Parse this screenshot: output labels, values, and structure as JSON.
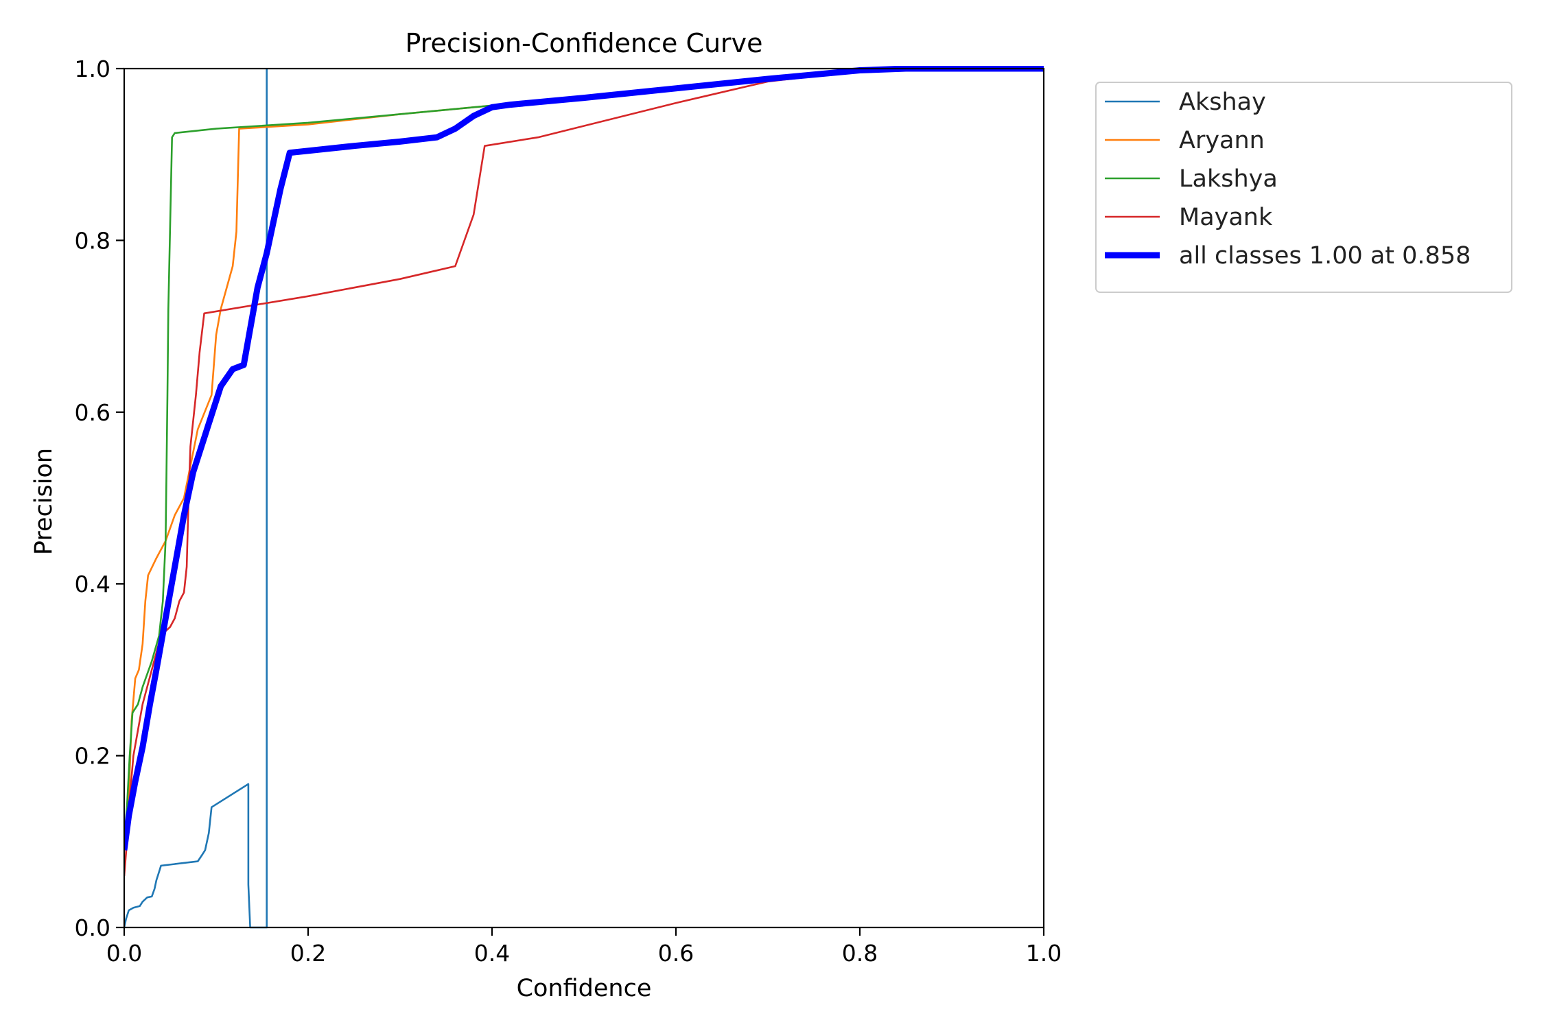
{
  "chart_data": {
    "type": "line",
    "title": "Precision-Confidence Curve",
    "xlabel": "Confidence",
    "ylabel": "Precision",
    "xlim": [
      0,
      1
    ],
    "ylim": [
      0,
      1
    ],
    "xticks": [
      "0.0",
      "0.2",
      "0.4",
      "0.6",
      "0.8",
      "1.0"
    ],
    "yticks": [
      "0.0",
      "0.2",
      "0.4",
      "0.6",
      "0.8",
      "1.0"
    ],
    "grid": false,
    "legend_position": "outside-top-right",
    "series": [
      {
        "name": "Akshay",
        "color": "#1f77b4",
        "thick": false,
        "points": [
          [
            0.0,
            0.0
          ],
          [
            0.002,
            0.01
          ],
          [
            0.005,
            0.02
          ],
          [
            0.01,
            0.023
          ],
          [
            0.017,
            0.025
          ],
          [
            0.02,
            0.03
          ],
          [
            0.025,
            0.035
          ],
          [
            0.03,
            0.036
          ],
          [
            0.033,
            0.045
          ],
          [
            0.035,
            0.055
          ],
          [
            0.038,
            0.065
          ],
          [
            0.04,
            0.072
          ],
          [
            0.08,
            0.077
          ],
          [
            0.085,
            0.085
          ],
          [
            0.088,
            0.09
          ],
          [
            0.092,
            0.11
          ],
          [
            0.095,
            0.14
          ],
          [
            0.135,
            0.167
          ],
          [
            0.135,
            0.05
          ],
          [
            0.137,
            0.0
          ],
          [
            0.155,
            0.0
          ],
          [
            0.155,
            1.0
          ]
        ]
      },
      {
        "name": "Aryann",
        "color": "#ff7f0e",
        "thick": false,
        "points": [
          [
            0.0,
            0.09
          ],
          [
            0.005,
            0.15
          ],
          [
            0.008,
            0.24
          ],
          [
            0.012,
            0.29
          ],
          [
            0.016,
            0.3
          ],
          [
            0.02,
            0.33
          ],
          [
            0.023,
            0.38
          ],
          [
            0.026,
            0.41
          ],
          [
            0.035,
            0.43
          ],
          [
            0.045,
            0.45
          ],
          [
            0.055,
            0.48
          ],
          [
            0.065,
            0.5
          ],
          [
            0.08,
            0.58
          ],
          [
            0.095,
            0.62
          ],
          [
            0.1,
            0.69
          ],
          [
            0.105,
            0.72
          ],
          [
            0.118,
            0.77
          ],
          [
            0.122,
            0.81
          ],
          [
            0.125,
            0.93
          ],
          [
            0.2,
            0.935
          ],
          [
            0.3,
            0.947
          ],
          [
            0.4,
            0.957
          ],
          [
            0.5,
            0.967
          ],
          [
            0.6,
            0.977
          ],
          [
            0.7,
            0.987
          ],
          [
            0.8,
            0.997
          ],
          [
            0.85,
            1.0
          ],
          [
            1.0,
            1.0
          ]
        ]
      },
      {
        "name": "Lakshya",
        "color": "#2ca02c",
        "thick": false,
        "points": [
          [
            0.0,
            0.1
          ],
          [
            0.003,
            0.14
          ],
          [
            0.006,
            0.2
          ],
          [
            0.009,
            0.25
          ],
          [
            0.015,
            0.26
          ],
          [
            0.02,
            0.28
          ],
          [
            0.03,
            0.31
          ],
          [
            0.038,
            0.34
          ],
          [
            0.042,
            0.38
          ],
          [
            0.045,
            0.45
          ],
          [
            0.046,
            0.53
          ],
          [
            0.047,
            0.62
          ],
          [
            0.048,
            0.72
          ],
          [
            0.05,
            0.82
          ],
          [
            0.052,
            0.92
          ],
          [
            0.055,
            0.925
          ],
          [
            0.1,
            0.93
          ],
          [
            0.2,
            0.937
          ],
          [
            0.3,
            0.947
          ],
          [
            0.4,
            0.957
          ],
          [
            0.5,
            0.967
          ],
          [
            0.6,
            0.977
          ],
          [
            0.7,
            0.987
          ],
          [
            0.8,
            0.997
          ],
          [
            0.85,
            1.0
          ],
          [
            1.0,
            1.0
          ]
        ]
      },
      {
        "name": "Mayank",
        "color": "#d62728",
        "thick": false,
        "points": [
          [
            0.0,
            0.06
          ],
          [
            0.003,
            0.1
          ],
          [
            0.006,
            0.15
          ],
          [
            0.01,
            0.2
          ],
          [
            0.015,
            0.23
          ],
          [
            0.02,
            0.26
          ],
          [
            0.03,
            0.3
          ],
          [
            0.04,
            0.34
          ],
          [
            0.05,
            0.35
          ],
          [
            0.055,
            0.36
          ],
          [
            0.06,
            0.38
          ],
          [
            0.065,
            0.39
          ],
          [
            0.068,
            0.42
          ],
          [
            0.07,
            0.5
          ],
          [
            0.072,
            0.56
          ],
          [
            0.078,
            0.62
          ],
          [
            0.082,
            0.67
          ],
          [
            0.087,
            0.715
          ],
          [
            0.2,
            0.735
          ],
          [
            0.3,
            0.755
          ],
          [
            0.36,
            0.77
          ],
          [
            0.38,
            0.83
          ],
          [
            0.392,
            0.91
          ],
          [
            0.45,
            0.92
          ],
          [
            0.6,
            0.96
          ],
          [
            0.7,
            0.985
          ],
          [
            0.8,
            0.997
          ],
          [
            0.85,
            1.0
          ],
          [
            1.0,
            1.0
          ]
        ]
      },
      {
        "name": "all classes 1.00 at 0.858",
        "color": "#0000ff",
        "thick": true,
        "points": [
          [
            0.0,
            0.09
          ],
          [
            0.005,
            0.13
          ],
          [
            0.012,
            0.17
          ],
          [
            0.02,
            0.21
          ],
          [
            0.028,
            0.26
          ],
          [
            0.035,
            0.3
          ],
          [
            0.045,
            0.36
          ],
          [
            0.055,
            0.42
          ],
          [
            0.065,
            0.48
          ],
          [
            0.075,
            0.53
          ],
          [
            0.09,
            0.58
          ],
          [
            0.105,
            0.63
          ],
          [
            0.118,
            0.65
          ],
          [
            0.13,
            0.655
          ],
          [
            0.145,
            0.745
          ],
          [
            0.155,
            0.785
          ],
          [
            0.17,
            0.86
          ],
          [
            0.18,
            0.902
          ],
          [
            0.25,
            0.91
          ],
          [
            0.3,
            0.915
          ],
          [
            0.34,
            0.92
          ],
          [
            0.36,
            0.93
          ],
          [
            0.38,
            0.945
          ],
          [
            0.4,
            0.955
          ],
          [
            0.42,
            0.958
          ],
          [
            0.5,
            0.966
          ],
          [
            0.6,
            0.977
          ],
          [
            0.7,
            0.988
          ],
          [
            0.8,
            0.998
          ],
          [
            0.85,
            1.0
          ],
          [
            1.0,
            1.0
          ]
        ]
      }
    ]
  }
}
